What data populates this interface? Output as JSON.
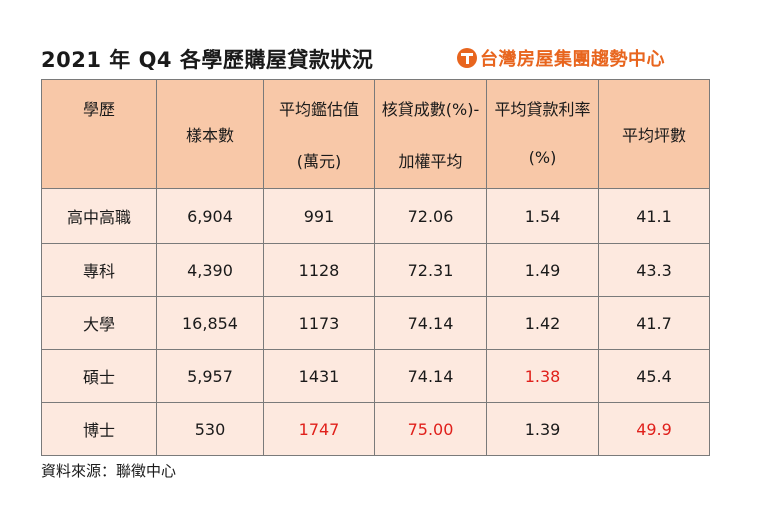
{
  "title": "2021 年 Q4 各學歷購屋貸款狀況",
  "logo": {
    "icon": "taiwan-realty-logo-icon",
    "text": "台灣房屋集團趨勢中心",
    "color": "#e8651e"
  },
  "table": {
    "headers": [
      {
        "line1": "學歷",
        "line2": ""
      },
      {
        "line1": "樣本數",
        "line2": ""
      },
      {
        "line1": "平均鑑估值",
        "line2": "(萬元)"
      },
      {
        "line1": "核貸成數(%)-",
        "line2": "加權平均"
      },
      {
        "line1": "平均貸款利率",
        "line2": "(%)"
      },
      {
        "line1": "平均坪數",
        "line2": ""
      }
    ],
    "rows": [
      [
        "高中高職",
        "6,904",
        "991",
        "72.06",
        "1.54",
        "41.1"
      ],
      [
        "專科",
        "4,390",
        "1128",
        "72.31",
        "1.49",
        "43.3"
      ],
      [
        "大學",
        "16,854",
        "1173",
        "74.14",
        "1.42",
        "41.7"
      ],
      [
        "碩士",
        "5,957",
        "1431",
        "74.14",
        "1.38",
        "45.4"
      ],
      [
        "博士",
        "530",
        "1747",
        "75.00",
        "1.39",
        "49.9"
      ]
    ],
    "header_bg": "#f8c8a8",
    "row_bg": "#fde9df",
    "highlight_color": "#e0201b"
  },
  "source": "資料來源：聯徵中心"
}
